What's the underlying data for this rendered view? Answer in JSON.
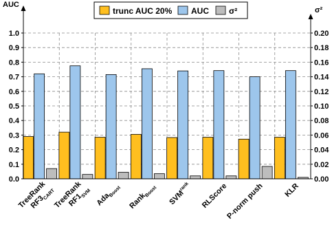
{
  "chart_data": {
    "type": "bar",
    "categories": [
      {
        "main": "TreeRank",
        "line2": "RF3",
        "sub": "CART",
        "sup": ""
      },
      {
        "main": "TreeRank",
        "line2": "RF1",
        "sub": "SVM",
        "sup": ""
      },
      {
        "main": "Ada",
        "line2": "",
        "sub": "Boost",
        "sup": ""
      },
      {
        "main": "Rank",
        "line2": "",
        "sub": "Boost",
        "sup": ""
      },
      {
        "main": "SVM",
        "line2": "",
        "sub": "",
        "sup": "rank"
      },
      {
        "main": "RLScore",
        "line2": "",
        "sub": "",
        "sup": ""
      },
      {
        "main": "P-norm push",
        "line2": "",
        "sub": "",
        "sup": ""
      },
      {
        "main": "KLR",
        "line2": "",
        "sub": "",
        "sup": ""
      }
    ],
    "series": [
      {
        "name": "trunc AUC 20%",
        "color": "#FFBF1F",
        "axis": "left",
        "values": [
          0.29,
          0.32,
          0.285,
          0.305,
          0.283,
          0.285,
          0.272,
          0.285
        ]
      },
      {
        "name": "AUC",
        "color": "#9DC6EC",
        "axis": "left",
        "values": [
          0.72,
          0.775,
          0.715,
          0.755,
          0.74,
          0.742,
          0.7,
          0.742
        ]
      },
      {
        "name": "σ²",
        "color": "#BDBDBD",
        "axis": "right",
        "values": [
          0.014,
          0.006,
          0.009,
          0.007,
          0.004,
          0.004,
          0.017,
          0.002
        ]
      }
    ],
    "ylabel": "AUC",
    "y2label": "σ²",
    "ylim": [
      0,
      1.0
    ],
    "y2lim": [
      0,
      0.2
    ],
    "yticks": [
      "0.0",
      "0.1",
      "0.2",
      "0.3",
      "0.4",
      "0.5",
      "0.6",
      "0.7",
      "0.8",
      "0.9",
      "1.0"
    ],
    "y2ticks": [
      "0.00",
      "0.02",
      "0.04",
      "0.06",
      "0.08",
      "0.10",
      "0.12",
      "0.14",
      "0.16",
      "0.18",
      "0.20"
    ],
    "grid": true,
    "legend_position": "top"
  }
}
